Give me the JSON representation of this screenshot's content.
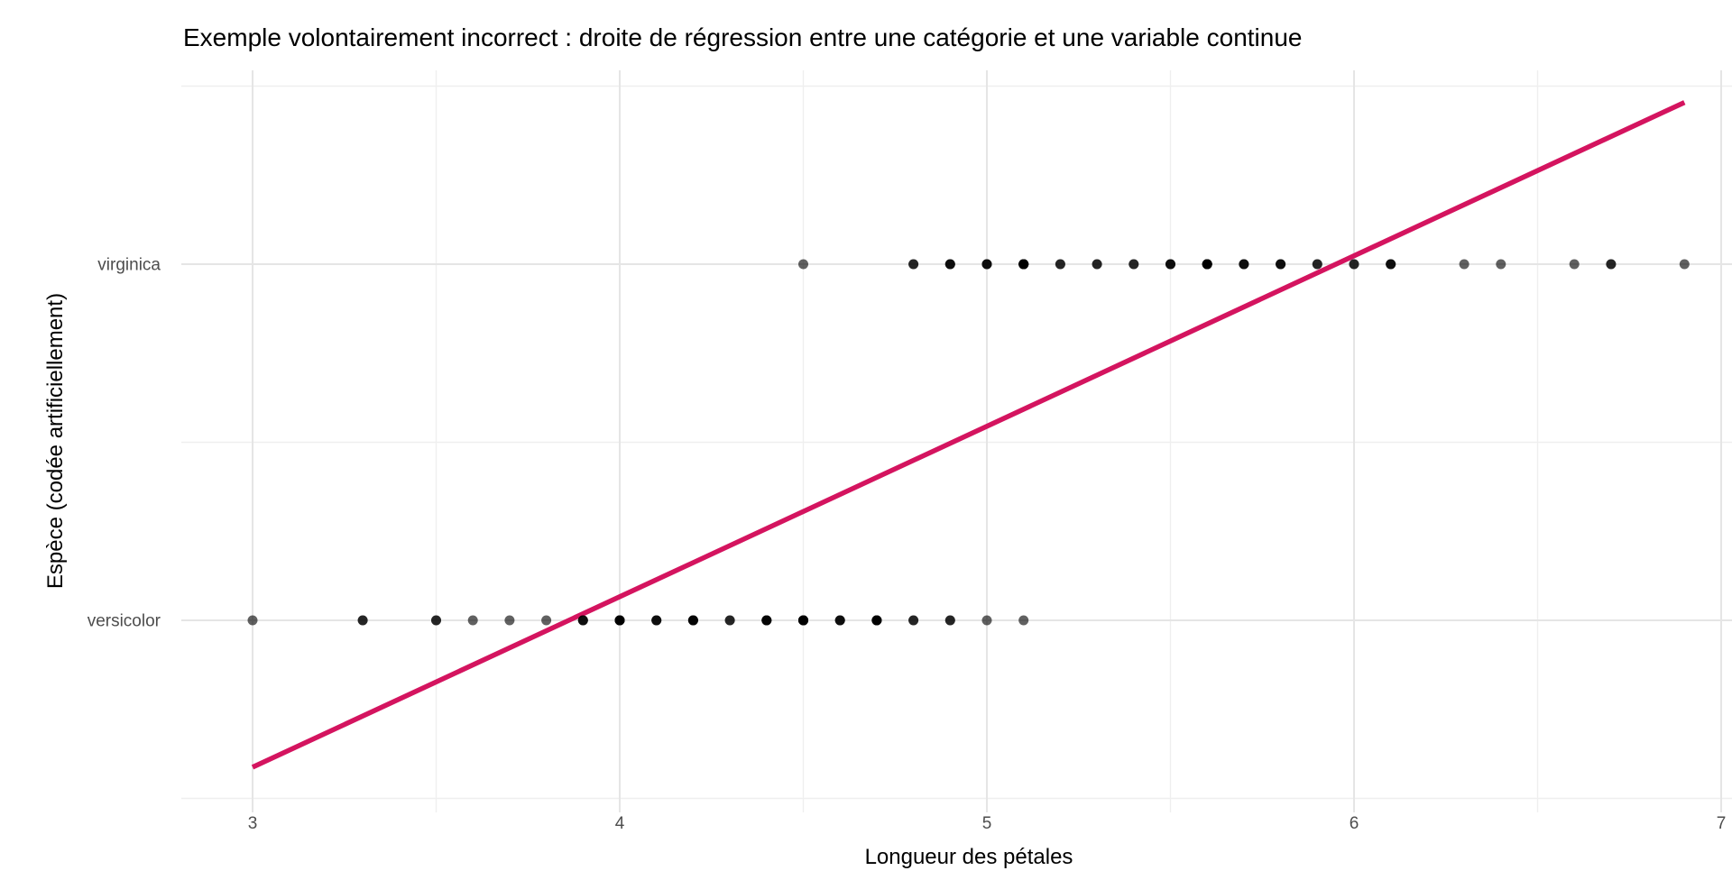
{
  "chart_data": {
    "type": "scatter",
    "title": "Exemple volontairement incorrect : droite de régression entre une catégorie et une variable continue",
    "xlabel": "Longueur des pétales",
    "ylabel": "Espèce (codée artificiellement)",
    "x_ticks": [
      3,
      4,
      5,
      6,
      7
    ],
    "x_minor_ticks": [
      3.5,
      4.5,
      5.5,
      6.5
    ],
    "xlim": [
      2.805,
      7.095
    ],
    "ylim": [
      0.46,
      2.55
    ],
    "y_categories": [
      {
        "label": "versicolor",
        "code": 1
      },
      {
        "label": "virginica",
        "code": 2
      }
    ],
    "y_minor_ticks": [
      0.5,
      1.5,
      2.5
    ],
    "grid": "on",
    "legend_position": "none",
    "series": [
      {
        "name": "versicolor",
        "code": 1,
        "petal_lengths": [
          4.7,
          4.5,
          4.9,
          4.0,
          4.6,
          4.5,
          4.7,
          3.3,
          4.6,
          3.9,
          3.5,
          4.2,
          4.0,
          4.7,
          3.6,
          4.4,
          4.5,
          4.1,
          4.5,
          3.9,
          4.8,
          4.0,
          4.9,
          4.7,
          4.3,
          4.4,
          4.8,
          5.0,
          4.5,
          3.5,
          3.8,
          3.7,
          3.9,
          5.1,
          4.5,
          4.5,
          4.7,
          4.4,
          4.1,
          4.0,
          4.4,
          4.6,
          4.0,
          3.3,
          4.2,
          4.2,
          4.2,
          4.3,
          3.0,
          4.1
        ]
      },
      {
        "name": "virginica",
        "code": 2,
        "petal_lengths": [
          6.0,
          5.1,
          5.9,
          5.6,
          5.8,
          6.6,
          4.5,
          6.3,
          5.8,
          6.1,
          5.1,
          5.3,
          5.5,
          5.0,
          5.1,
          5.3,
          5.5,
          6.7,
          6.9,
          5.0,
          5.7,
          4.9,
          6.7,
          4.9,
          5.7,
          6.0,
          4.8,
          4.9,
          5.6,
          5.8,
          6.1,
          6.4,
          5.6,
          5.1,
          5.6,
          6.1,
          5.6,
          5.5,
          4.8,
          5.4,
          5.6,
          5.1,
          5.1,
          5.9,
          5.7,
          5.2,
          5.0,
          5.2,
          5.4,
          5.1
        ]
      }
    ],
    "regression_line": {
      "slope": 0.4786,
      "intercept": -0.8481,
      "x_start": 3.0,
      "x_end": 6.9
    },
    "colors": {
      "regression_line": "#D4145F",
      "point": "#000000",
      "point_opacity": 0.62,
      "grid_major": "#E5E5E5",
      "grid_minor": "#EFEFEF",
      "axis_text": "#4D4D4D",
      "background": "#FFFFFF"
    }
  }
}
